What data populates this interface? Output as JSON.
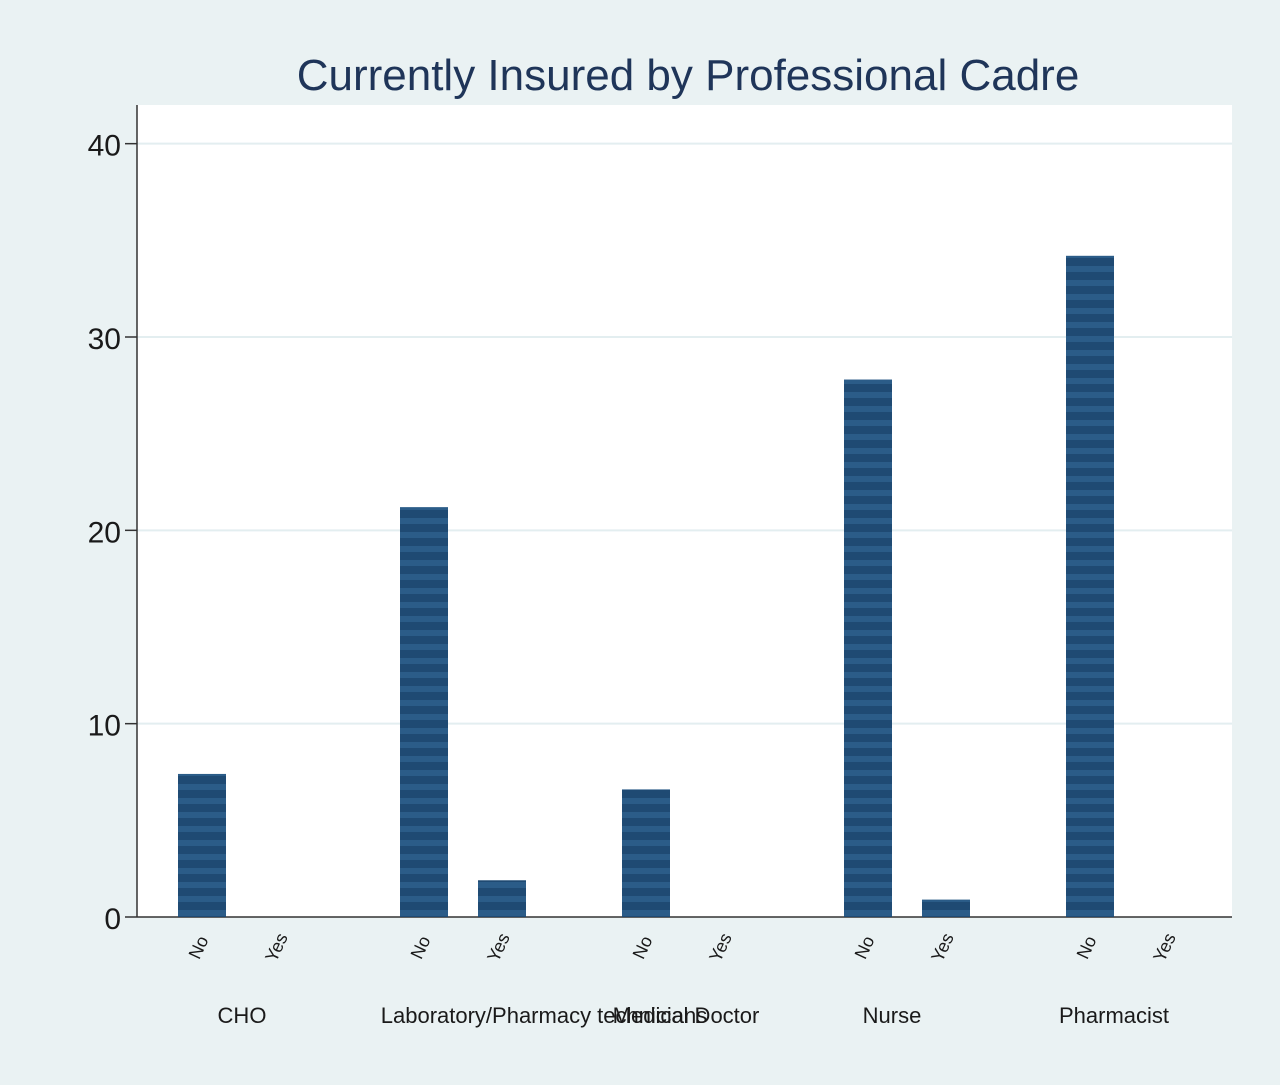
{
  "chart_data": {
    "type": "bar",
    "title": "Currently Insured by Professional Cadre",
    "xlabel": "",
    "ylabel": "",
    "ylim": [
      0,
      42
    ],
    "yticks": [
      0,
      10,
      20,
      30,
      40
    ],
    "grid": true,
    "legend": "none",
    "colors": {
      "outer_background": "#eaf2f3",
      "plot_background": "#ffffff",
      "bar": "#1f4a73",
      "bar_stripe": "#2b5c88",
      "gridline": "#e3eef0",
      "title": "#1f3559"
    },
    "groups": [
      {
        "name": "CHO",
        "bars": [
          {
            "label": "No",
            "value": 7.4
          },
          {
            "label": "Yes",
            "value": 0
          }
        ]
      },
      {
        "name": "Laboratory/Pharmacy technicians",
        "bars": [
          {
            "label": "No",
            "value": 21.2
          },
          {
            "label": "Yes",
            "value": 1.9
          }
        ]
      },
      {
        "name": "Medical Doctor",
        "bars": [
          {
            "label": "No",
            "value": 6.6
          },
          {
            "label": "Yes",
            "value": 0
          }
        ]
      },
      {
        "name": "Nurse",
        "bars": [
          {
            "label": "No",
            "value": 27.8
          },
          {
            "label": "Yes",
            "value": 0.9
          }
        ]
      },
      {
        "name": "Pharmacist",
        "bars": [
          {
            "label": "No",
            "value": 34.2
          },
          {
            "label": "Yes",
            "value": 0
          }
        ]
      }
    ]
  }
}
